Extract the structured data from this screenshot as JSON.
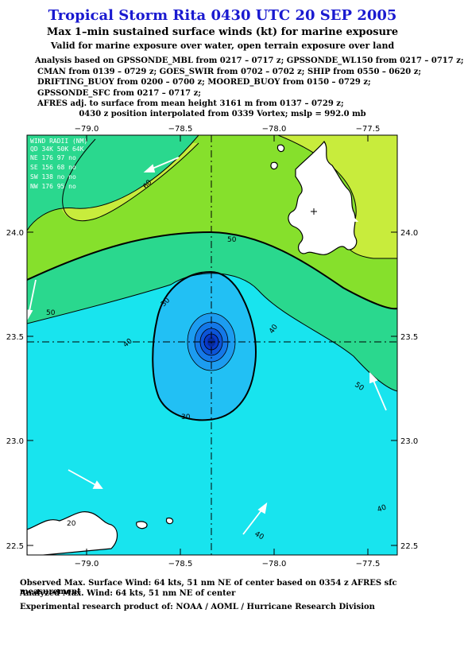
{
  "header": {
    "title": "Tropical Storm Rita 0430 UTC 20 SEP 2005",
    "subtitle": "Max 1–min sustained surface winds (kt) for marine exposure",
    "exposure_note": "Valid for marine exposure over water, open terrain exposure over land"
  },
  "analysis_lines": [
    "Analysis based on  GPSSONDE_MBL from 0217 – 0717 z;  GPSSONDE_WL150 from 0217 – 0717 z;",
    "CMAN from 0139 – 0729 z;  GOES_SWIR from 0702 – 0702 z;  SHIP from 0550 – 0620 z;",
    "DRIFTING_BUOY from 0200 – 0700 z;  MOORED_BUOY from 0150 – 0729 z;",
    "GPSSONDE_SFC from 0217 – 0717 z;",
    "AFRES adj. to surface from mean height 3161 m from 0137 – 0729 z;"
  ],
  "position_note": "0430 z position interpolated from 0339 Vortex; mslp = 992.0 mb",
  "map": {
    "lon_ticks": [
      "−79.0",
      "−78.5",
      "−78.0",
      "−77.5"
    ],
    "lat_ticks": [
      "24.0",
      "23.5",
      "23.0",
      "22.5"
    ],
    "center": {
      "lon": -78.35,
      "lat": 23.45
    },
    "contour_labels": [
      "60",
      "50",
      "50",
      "50",
      "40",
      "40",
      "40",
      "40",
      "30",
      "30",
      "20"
    ],
    "fill_colors": {
      "gt60": "#c8ec3c",
      "50-60": "#86e02c",
      "40-50": "#2ad88e",
      "30-40": "#18e4ee",
      "20-30": "#22c0f4",
      "core_1": "#1c9cf0",
      "core_2": "#1478e8",
      "core_3": "#0c54d8",
      "core_4": "#0838c8",
      "eye": "#062a9c",
      "land": "#ffffff"
    },
    "wind_radii": {
      "header": "WIND RADII (NM)",
      "columns": "QD 34K 50K 64K",
      "rows": [
        "NE 176 97 no",
        "SE 156 68 no",
        "SW 138 no no",
        "NW 176 95 no"
      ]
    }
  },
  "footer": {
    "observed": "Observed Max. Surface Wind: 64 kts, 51 nm NE of center based on 0354 z AFRES sfc measurement",
    "analyzed": "Analyzed Max. Wind: 64 kts, 51 nm NE of center",
    "credit": "Experimental research product of:  NOAA / AOML / Hurricane Research Division"
  }
}
